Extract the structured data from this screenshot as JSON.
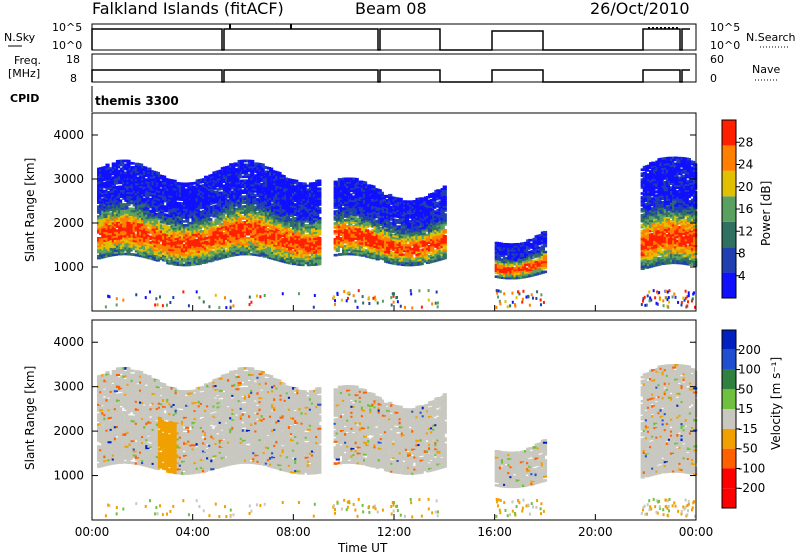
{
  "header": {
    "station": "Falkland Islands (fitACF)",
    "beam": "Beam 08",
    "date": "26/Oct/2010"
  },
  "strip_panels": {
    "nsky": {
      "left_label": "N.Sky",
      "left_ticks": [
        "10^5",
        "10^0"
      ],
      "right_label": "N.Search",
      "right_ticks": [
        "10^5",
        "10^0"
      ]
    },
    "freq": {
      "left_label_1": "Freq.",
      "left_label_2": "[MHz]",
      "left_ticks": [
        "18",
        "8"
      ],
      "right_label": "Nave",
      "right_ticks": [
        "60",
        "0"
      ]
    },
    "cpid": {
      "label": "CPID",
      "program": "themis 3300"
    }
  },
  "chart_data": [
    {
      "type": "heatmap",
      "parameter": "power",
      "ylabel": "Slant Range [km]",
      "yticks": [
        1000,
        2000,
        3000,
        4000
      ],
      "ylim": [
        0,
        4500
      ],
      "xlim_hours": [
        0,
        24
      ],
      "colorbar": {
        "label": "Power [dB]",
        "ticks": [
          "4",
          "8",
          "12",
          "16",
          "20",
          "24",
          "28"
        ],
        "colors": [
          "#1010ff",
          "#2040b0",
          "#307060",
          "#5aa060",
          "#e0c000",
          "#ff8000",
          "#ff2000"
        ]
      },
      "approx_scatter_bands": [
        {
          "t_start": 0.2,
          "t_end": 9.0,
          "range_low": 1200,
          "range_high": 3200,
          "peak_power_db": 28
        },
        {
          "t_start": 9.6,
          "t_end": 14.0,
          "range_low": 1200,
          "range_high": 2800,
          "peak_power_db": 24
        },
        {
          "t_start": 16.0,
          "t_end": 18.0,
          "range_low": 900,
          "range_high": 1800,
          "peak_power_db": 20
        },
        {
          "t_start": 21.8,
          "t_end": 24.0,
          "range_low": 1000,
          "range_high": 3300,
          "peak_power_db": 28
        }
      ]
    },
    {
      "type": "heatmap",
      "parameter": "velocity",
      "ylabel": "Slant Range [km]",
      "yticks": [
        1000,
        2000,
        3000,
        4000
      ],
      "ylim": [
        0,
        4500
      ],
      "xlabel": "Time UT",
      "xticks": [
        "00:00",
        "04:00",
        "08:00",
        "12:00",
        "16:00",
        "20:00",
        "00:00"
      ],
      "xlim_hours": [
        0,
        24
      ],
      "colorbar": {
        "label": "Velocity [m s⁻¹]",
        "ticks": [
          "200",
          "100",
          "50",
          "15",
          "-15",
          "-50",
          "-100",
          "-200"
        ],
        "colors": [
          "#0020c0",
          "#2050d0",
          "#308040",
          "#70c040",
          "#c8c8c0",
          "#f0a000",
          "#ff6000",
          "#ff0000",
          "#ff0000"
        ]
      },
      "ground_scatter_color": "#c8c8c0"
    }
  ]
}
